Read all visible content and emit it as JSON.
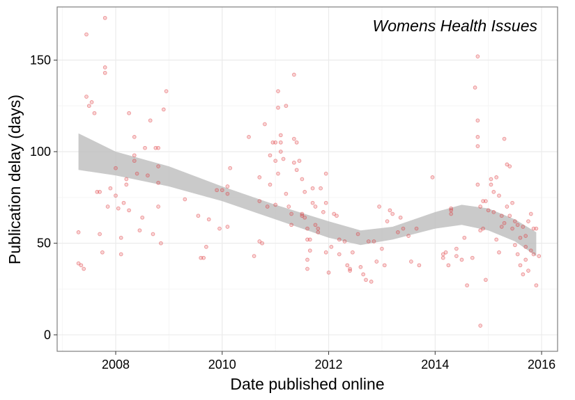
{
  "chart_data": {
    "type": "scatter",
    "title": "Womens Health Issues",
    "xlabel": "Date published online",
    "ylabel": "Publication delay (days)",
    "xlim": [
      2006.9,
      2016.3
    ],
    "ylim": [
      -9,
      179
    ],
    "x_ticks": [
      2008,
      2010,
      2012,
      2014,
      2016
    ],
    "y_ticks": [
      0,
      50,
      100,
      150
    ],
    "x_tick_labels": [
      "2008",
      "2010",
      "2012",
      "2014",
      "2016"
    ],
    "y_tick_labels": [
      "0",
      "50",
      "100",
      "150"
    ],
    "grid": true,
    "point_color": "#e0393e",
    "ribbon_color": "#bdbdbd",
    "points": [
      [
        2007.3,
        56
      ],
      [
        2007.3,
        39
      ],
      [
        2007.35,
        38
      ],
      [
        2007.4,
        36
      ],
      [
        2007.45,
        164
      ],
      [
        2007.45,
        130
      ],
      [
        2007.5,
        125
      ],
      [
        2007.55,
        127
      ],
      [
        2007.6,
        121
      ],
      [
        2007.65,
        78
      ],
      [
        2007.7,
        78
      ],
      [
        2007.7,
        55
      ],
      [
        2007.75,
        45
      ],
      [
        2007.8,
        173
      ],
      [
        2007.8,
        146
      ],
      [
        2007.8,
        143
      ],
      [
        2007.85,
        70
      ],
      [
        2007.9,
        80
      ],
      [
        2008.0,
        91
      ],
      [
        2008.0,
        76
      ],
      [
        2008.05,
        69
      ],
      [
        2008.1,
        53
      ],
      [
        2008.1,
        44
      ],
      [
        2008.15,
        72
      ],
      [
        2008.2,
        85
      ],
      [
        2008.2,
        82
      ],
      [
        2008.25,
        121
      ],
      [
        2008.25,
        68
      ],
      [
        2008.35,
        108
      ],
      [
        2008.35,
        98
      ],
      [
        2008.35,
        95
      ],
      [
        2008.4,
        88
      ],
      [
        2008.45,
        57
      ],
      [
        2008.5,
        64
      ],
      [
        2008.55,
        102
      ],
      [
        2008.6,
        87
      ],
      [
        2008.65,
        117
      ],
      [
        2008.7,
        55
      ],
      [
        2008.75,
        102
      ],
      [
        2008.8,
        102
      ],
      [
        2008.8,
        92
      ],
      [
        2008.8,
        83
      ],
      [
        2008.8,
        70
      ],
      [
        2008.85,
        50
      ],
      [
        2008.9,
        123
      ],
      [
        2008.95,
        133
      ],
      [
        2009.3,
        74
      ],
      [
        2009.55,
        65
      ],
      [
        2009.6,
        42
      ],
      [
        2009.65,
        42
      ],
      [
        2009.7,
        48
      ],
      [
        2009.75,
        63
      ],
      [
        2009.9,
        79
      ],
      [
        2009.95,
        58
      ],
      [
        2010.0,
        79
      ],
      [
        2010.1,
        81
      ],
      [
        2010.1,
        77
      ],
      [
        2010.1,
        59
      ],
      [
        2010.15,
        91
      ],
      [
        2010.5,
        108
      ],
      [
        2010.6,
        43
      ],
      [
        2010.7,
        86
      ],
      [
        2010.7,
        73
      ],
      [
        2010.7,
        51
      ],
      [
        2010.75,
        50
      ],
      [
        2010.8,
        115
      ],
      [
        2010.85,
        70
      ],
      [
        2010.9,
        98
      ],
      [
        2010.9,
        82
      ],
      [
        2010.95,
        105
      ],
      [
        2011.0,
        105
      ],
      [
        2011.0,
        95
      ],
      [
        2011.0,
        71
      ],
      [
        2011.05,
        88
      ],
      [
        2011.05,
        133
      ],
      [
        2011.05,
        124
      ],
      [
        2011.1,
        109
      ],
      [
        2011.1,
        105
      ],
      [
        2011.1,
        100
      ],
      [
        2011.15,
        96
      ],
      [
        2011.2,
        125
      ],
      [
        2011.2,
        77
      ],
      [
        2011.25,
        70
      ],
      [
        2011.3,
        66
      ],
      [
        2011.3,
        60
      ],
      [
        2011.35,
        142
      ],
      [
        2011.35,
        107
      ],
      [
        2011.35,
        94
      ],
      [
        2011.4,
        105
      ],
      [
        2011.4,
        90
      ],
      [
        2011.45,
        95
      ],
      [
        2011.5,
        85
      ],
      [
        2011.5,
        66
      ],
      [
        2011.5,
        65
      ],
      [
        2011.55,
        78
      ],
      [
        2011.55,
        64
      ],
      [
        2011.6,
        58
      ],
      [
        2011.6,
        52
      ],
      [
        2011.6,
        41
      ],
      [
        2011.6,
        36
      ],
      [
        2011.65,
        52
      ],
      [
        2011.65,
        46
      ],
      [
        2011.7,
        80
      ],
      [
        2011.7,
        72
      ],
      [
        2011.75,
        70
      ],
      [
        2011.75,
        60
      ],
      [
        2011.8,
        58
      ],
      [
        2011.8,
        56
      ],
      [
        2011.85,
        80
      ],
      [
        2011.9,
        67
      ],
      [
        2011.95,
        88
      ],
      [
        2011.95,
        72
      ],
      [
        2011.95,
        45
      ],
      [
        2012.0,
        34
      ],
      [
        2012.05,
        48
      ],
      [
        2012.1,
        66
      ],
      [
        2012.15,
        65
      ],
      [
        2012.2,
        52
      ],
      [
        2012.2,
        44
      ],
      [
        2012.3,
        51
      ],
      [
        2012.35,
        38
      ],
      [
        2012.4,
        36
      ],
      [
        2012.4,
        35
      ],
      [
        2012.45,
        45
      ],
      [
        2012.55,
        55
      ],
      [
        2012.6,
        37
      ],
      [
        2012.65,
        33
      ],
      [
        2012.7,
        30
      ],
      [
        2012.75,
        51
      ],
      [
        2012.8,
        29
      ],
      [
        2012.85,
        51
      ],
      [
        2012.9,
        40
      ],
      [
        2012.95,
        70
      ],
      [
        2013.0,
        47
      ],
      [
        2013.05,
        38
      ],
      [
        2013.1,
        62
      ],
      [
        2013.15,
        68
      ],
      [
        2013.2,
        66
      ],
      [
        2013.3,
        56
      ],
      [
        2013.35,
        64
      ],
      [
        2013.4,
        58
      ],
      [
        2013.5,
        54
      ],
      [
        2013.55,
        40
      ],
      [
        2013.65,
        58
      ],
      [
        2013.7,
        38
      ],
      [
        2013.95,
        86
      ],
      [
        2014.15,
        44
      ],
      [
        2014.15,
        42
      ],
      [
        2014.2,
        45
      ],
      [
        2014.25,
        38
      ],
      [
        2014.3,
        69
      ],
      [
        2014.3,
        68
      ],
      [
        2014.3,
        66
      ],
      [
        2014.4,
        47
      ],
      [
        2014.4,
        43
      ],
      [
        2014.5,
        41
      ],
      [
        2014.55,
        53
      ],
      [
        2014.6,
        27
      ],
      [
        2014.7,
        42
      ],
      [
        2014.75,
        135
      ],
      [
        2014.8,
        152
      ],
      [
        2014.8,
        117
      ],
      [
        2014.8,
        108
      ],
      [
        2014.8,
        103
      ],
      [
        2014.8,
        82
      ],
      [
        2014.85,
        70
      ],
      [
        2014.85,
        57
      ],
      [
        2014.85,
        5
      ],
      [
        2014.9,
        73
      ],
      [
        2014.9,
        58
      ],
      [
        2014.95,
        73
      ],
      [
        2014.95,
        30
      ],
      [
        2015.0,
        68
      ],
      [
        2015.05,
        85
      ],
      [
        2015.05,
        82
      ],
      [
        2015.1,
        78
      ],
      [
        2015.1,
        67
      ],
      [
        2015.15,
        86
      ],
      [
        2015.15,
        52
      ],
      [
        2015.2,
        76
      ],
      [
        2015.2,
        45
      ],
      [
        2015.25,
        65
      ],
      [
        2015.25,
        59
      ],
      [
        2015.3,
        107
      ],
      [
        2015.3,
        61
      ],
      [
        2015.35,
        93
      ],
      [
        2015.35,
        70
      ],
      [
        2015.4,
        92
      ],
      [
        2015.4,
        65
      ],
      [
        2015.45,
        72
      ],
      [
        2015.45,
        58
      ],
      [
        2015.5,
        62
      ],
      [
        2015.5,
        49
      ],
      [
        2015.55,
        60
      ],
      [
        2015.55,
        44
      ],
      [
        2015.6,
        53
      ],
      [
        2015.6,
        38
      ],
      [
        2015.65,
        59
      ],
      [
        2015.65,
        33
      ],
      [
        2015.7,
        54
      ],
      [
        2015.7,
        48
      ],
      [
        2015.7,
        41
      ],
      [
        2015.75,
        62
      ],
      [
        2015.75,
        35
      ],
      [
        2015.8,
        66
      ],
      [
        2015.8,
        46
      ],
      [
        2015.85,
        58
      ],
      [
        2015.85,
        44
      ],
      [
        2015.9,
        58
      ],
      [
        2015.9,
        27
      ],
      [
        2015.95,
        43
      ]
    ],
    "smooth": {
      "x": [
        2007.3,
        2008.0,
        2009.0,
        2010.0,
        2011.0,
        2012.0,
        2012.6,
        2013.2,
        2014.0,
        2014.5,
        2015.0,
        2015.5,
        2015.9
      ],
      "lower": [
        90,
        87,
        81,
        73,
        63,
        53,
        49,
        52,
        58,
        60,
        57,
        51,
        43
      ],
      "upper": [
        110,
        100,
        92,
        81,
        71,
        62,
        57,
        59,
        67,
        71,
        69,
        63,
        56
      ]
    }
  }
}
